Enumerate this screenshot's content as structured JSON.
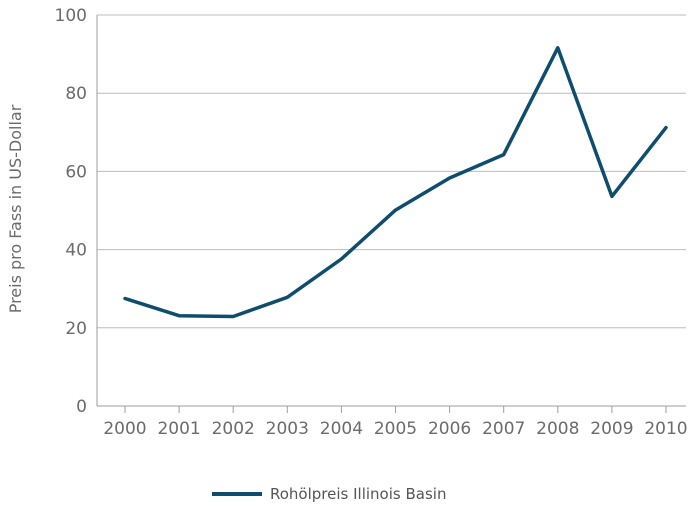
{
  "chart_data": {
    "type": "line",
    "title": "",
    "xlabel": "",
    "ylabel": "Preis pro Fass in US-Dollar",
    "ylim": [
      0,
      100
    ],
    "yticks": [
      "0",
      "20",
      "40",
      "60",
      "80",
      "100"
    ],
    "categories": [
      "2000",
      "2001",
      "2002",
      "2003",
      "2004",
      "2005",
      "2006",
      "2007",
      "2008",
      "2009",
      "2010"
    ],
    "series": [
      {
        "name": "Rohölpreis Illinois Basin",
        "color": "#0e4d6e",
        "values": [
          27.5,
          23.1,
          22.9,
          27.8,
          37.6,
          50.1,
          58.3,
          64.3,
          91.6,
          53.6,
          71.2
        ]
      }
    ],
    "grid": "horizontal",
    "legend": "bottom-center"
  }
}
